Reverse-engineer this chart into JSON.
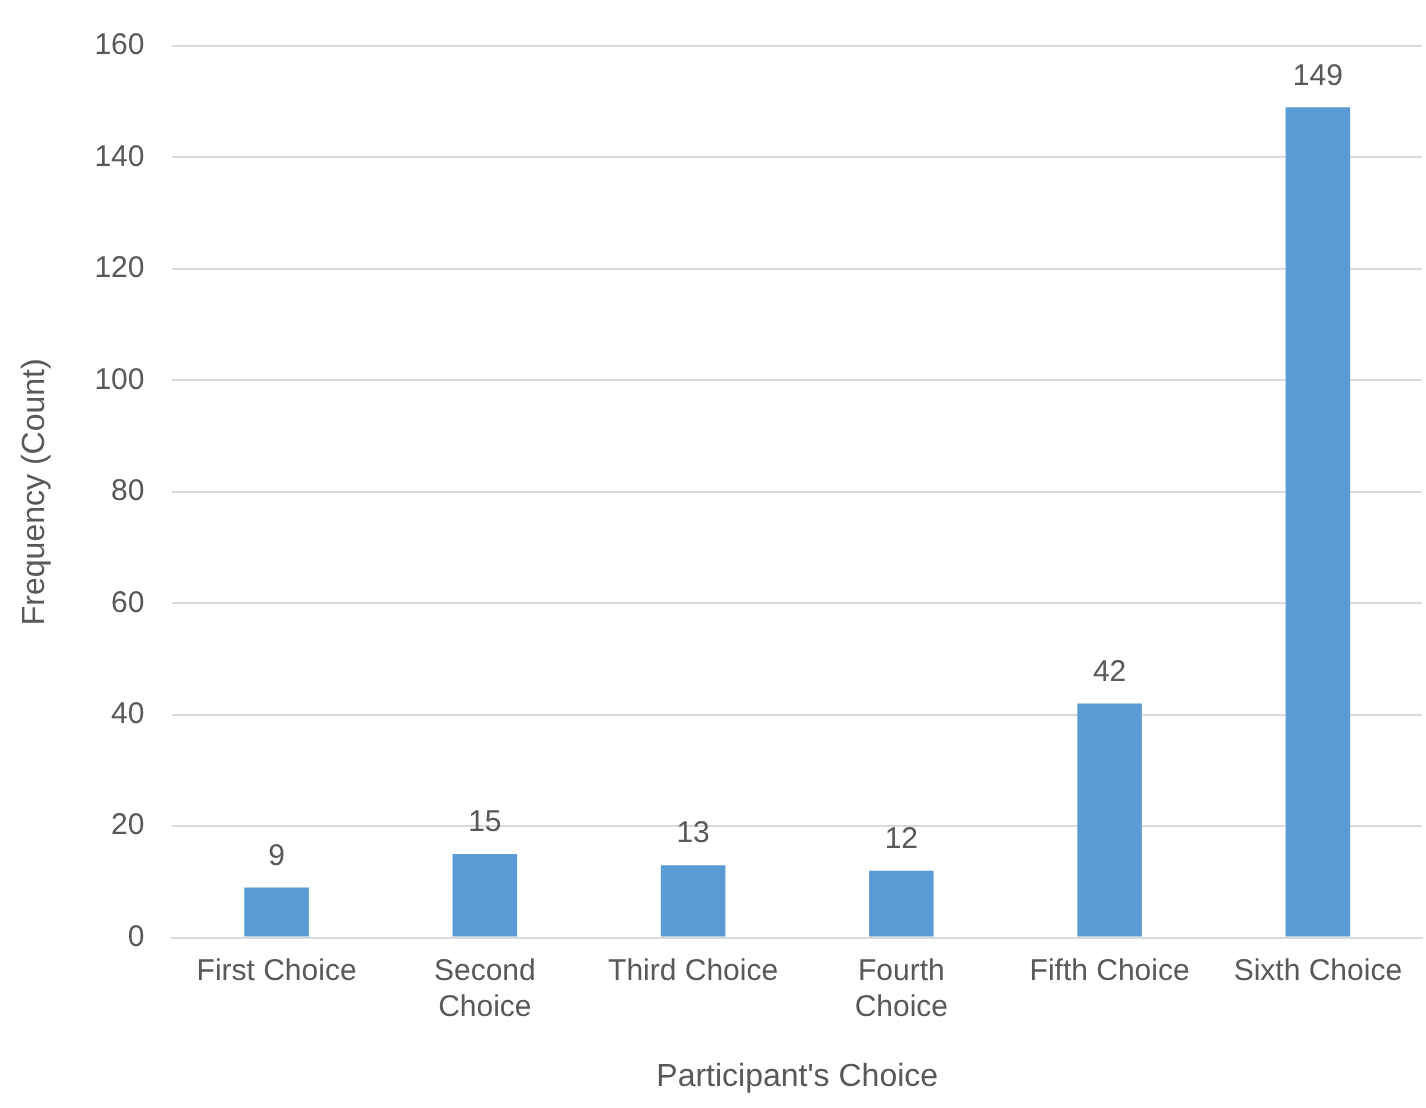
{
  "chart_data": {
    "type": "bar",
    "xlabel": "Participant's Choice",
    "ylabel": "Frequency (Count)",
    "categories": [
      "First Choice",
      "Second Choice",
      "Third Choice",
      "Fourth Choice",
      "Fifth Choice",
      "Sixth Choice"
    ],
    "values": [
      9,
      15,
      13,
      12,
      42,
      149
    ],
    "color": "#5b9bd5",
    "ylim": [
      0,
      160
    ],
    "yticks": [
      0,
      20,
      40,
      60,
      80,
      100,
      120,
      140,
      160
    ],
    "grid": "y",
    "data_labels": true,
    "legend": false
  }
}
